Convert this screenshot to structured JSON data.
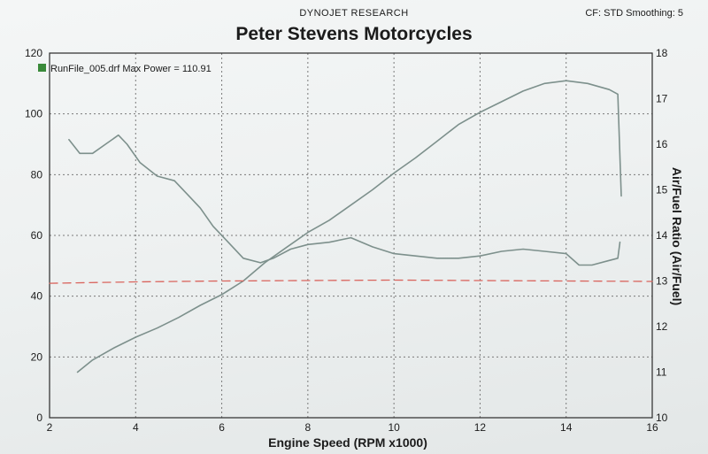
{
  "header": {
    "company": "DYNOJET RESEARCH",
    "settings": "CF: STD  Smoothing: 5",
    "title": "Peter Stevens Motorcycles"
  },
  "legend": {
    "label": "RunFile_005.drf Max Power = 110.91",
    "swatch_color": "#3a8a3a"
  },
  "chart_data": {
    "type": "line",
    "title": "Peter Stevens Motorcycles",
    "xlabel": "Engine Speed (RPM x1000)",
    "ylabel": "",
    "y2label": "Air/Fuel Ratio (Air/Fuel)",
    "xlim": [
      2,
      16
    ],
    "ylim": [
      0,
      120
    ],
    "y2lim": [
      10,
      18
    ],
    "x_ticks": [
      2,
      4,
      6,
      8,
      10,
      12,
      14,
      16
    ],
    "y_ticks": [
      0,
      20,
      40,
      60,
      80,
      100,
      120
    ],
    "y2_ticks": [
      10,
      11,
      12,
      13,
      14,
      15,
      16,
      17,
      18
    ],
    "grid": true,
    "series": [
      {
        "name": "RunFile_005.drf Max Power = 110.91",
        "axis": "left",
        "color": "#7d908c",
        "x": [
          2.65,
          3.0,
          3.5,
          4.0,
          4.5,
          5.0,
          5.5,
          6.0,
          6.5,
          7.0,
          7.5,
          8.0,
          8.5,
          9.0,
          9.5,
          10.0,
          10.5,
          11.0,
          11.5,
          12.0,
          12.5,
          13.0,
          13.5,
          14.0,
          14.5,
          15.0,
          15.2,
          15.28
        ],
        "y": [
          15,
          19,
          23,
          26.5,
          29.5,
          33,
          37,
          40.5,
          45,
          51,
          56,
          61,
          65,
          70,
          75,
          80.5,
          85.5,
          91,
          96.5,
          100.5,
          104,
          107.5,
          110,
          110.91,
          110,
          108,
          106.5,
          73
        ]
      },
      {
        "name": "",
        "axis": "right",
        "color": "#7d908c",
        "x": [
          2.45,
          2.7,
          3.0,
          3.3,
          3.6,
          3.8,
          4.1,
          4.5,
          4.9,
          5.2,
          5.5,
          5.8,
          6.1,
          6.5,
          6.9,
          7.2,
          7.6,
          8.0,
          8.5,
          9.0,
          9.5,
          10.0,
          10.5,
          11.0,
          11.5,
          12.0,
          12.5,
          13.0,
          13.5,
          14.0,
          14.3,
          14.6,
          15.0,
          15.2,
          15.25
        ],
        "y": [
          16.1,
          15.8,
          15.8,
          16.0,
          16.2,
          16.0,
          15.6,
          15.3,
          15.2,
          14.9,
          14.6,
          14.2,
          13.9,
          13.5,
          13.4,
          13.5,
          13.7,
          13.8,
          13.85,
          13.95,
          13.75,
          13.6,
          13.55,
          13.5,
          13.5,
          13.55,
          13.65,
          13.7,
          13.65,
          13.6,
          13.35,
          13.35,
          13.45,
          13.5,
          13.85
        ]
      },
      {
        "name": "",
        "axis": "right",
        "color": "#d9645d",
        "dashed": true,
        "x": [
          2,
          4,
          6,
          8,
          10,
          12,
          14,
          16
        ],
        "y": [
          12.95,
          12.98,
          13.0,
          13.01,
          13.02,
          13.01,
          13.0,
          12.99
        ]
      }
    ]
  }
}
